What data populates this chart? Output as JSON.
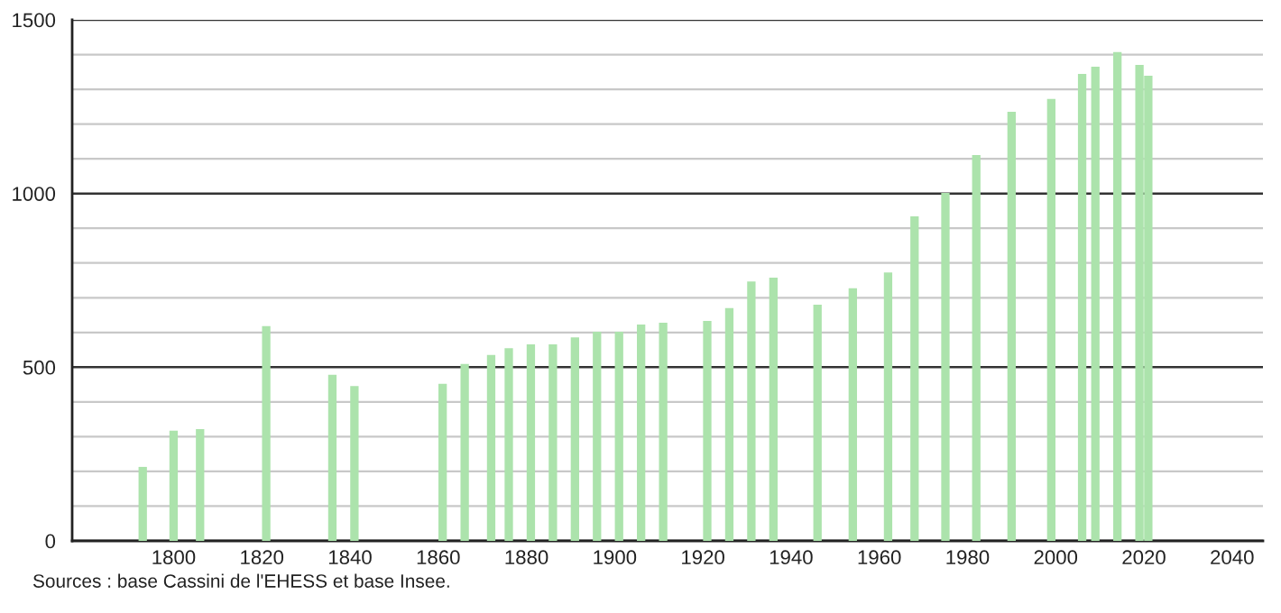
{
  "chart_data": {
    "type": "bar",
    "x": [
      1793,
      1800,
      1806,
      1821,
      1836,
      1841,
      1861,
      1866,
      1872,
      1876,
      1881,
      1886,
      1891,
      1896,
      1901,
      1906,
      1911,
      1921,
      1926,
      1931,
      1936,
      1946,
      1954,
      1962,
      1968,
      1975,
      1982,
      1990,
      1999,
      2006,
      2009,
      2014,
      2019,
      2021
    ],
    "values": [
      213,
      317,
      322,
      618,
      478,
      446,
      452,
      509,
      535,
      555,
      566,
      566,
      586,
      602,
      602,
      623,
      628,
      633,
      670,
      747,
      758,
      680,
      727,
      773,
      934,
      1002,
      1111,
      1235,
      1272,
      1344,
      1365,
      1407,
      1370,
      1339
    ],
    "color": "#ace3ac",
    "xlim": [
      1777,
      2047
    ],
    "xticks": [
      1800,
      1820,
      1840,
      1860,
      1880,
      1900,
      1920,
      1940,
      1960,
      1980,
      2000,
      2020,
      2040
    ],
    "ylim": [
      0,
      1500
    ],
    "yticks": [
      0,
      {
        "value": 100,
        "label": null
      },
      {
        "value": 200,
        "label": null
      },
      {
        "value": 300,
        "label": null
      },
      {
        "value": 400,
        "label": null
      },
      500,
      {
        "value": 600,
        "label": null
      },
      {
        "value": 700,
        "label": null
      },
      {
        "value": 800,
        "label": null
      },
      {
        "value": 900,
        "label": null
      },
      1000,
      {
        "value": 1100,
        "label": null
      },
      {
        "value": 1200,
        "label": null
      },
      {
        "value": 1300,
        "label": null
      },
      {
        "value": 1400,
        "label": null
      },
      1500
    ],
    "grid": "y",
    "annotations": [
      "Sources : base Cassini de l'EHESS et base Insee."
    ]
  }
}
